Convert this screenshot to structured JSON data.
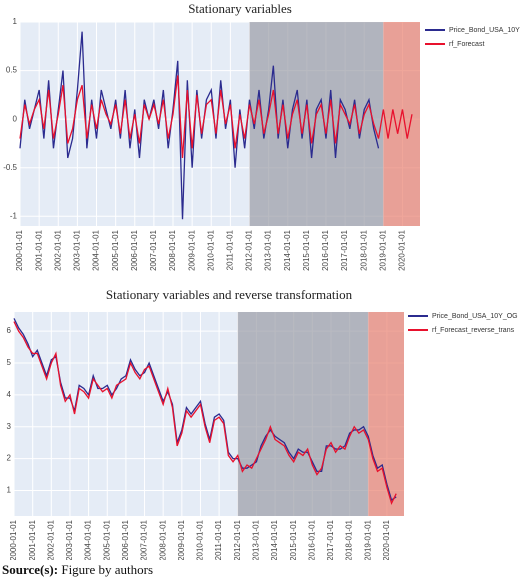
{
  "chart_data": [
    {
      "type": "line",
      "title": "Stationary variables",
      "x": [
        "2000-01-01",
        "2000-04-01",
        "2000-07-01",
        "2000-10-01",
        "2001-01-01",
        "2001-04-01",
        "2001-07-01",
        "2001-10-01",
        "2002-01-01",
        "2002-04-01",
        "2002-07-01",
        "2002-10-01",
        "2003-01-01",
        "2003-04-01",
        "2003-07-01",
        "2003-10-01",
        "2004-01-01",
        "2004-04-01",
        "2004-07-01",
        "2004-10-01",
        "2005-01-01",
        "2005-04-01",
        "2005-07-01",
        "2005-10-01",
        "2006-01-01",
        "2006-04-01",
        "2006-07-01",
        "2006-10-01",
        "2007-01-01",
        "2007-04-01",
        "2007-07-01",
        "2007-10-01",
        "2008-01-01",
        "2008-04-01",
        "2008-07-01",
        "2008-10-01",
        "2009-01-01",
        "2009-04-01",
        "2009-07-01",
        "2009-10-01",
        "2010-01-01",
        "2010-04-01",
        "2010-07-01",
        "2010-10-01",
        "2011-01-01",
        "2011-04-01",
        "2011-07-01",
        "2011-10-01",
        "2012-01-01",
        "2012-04-01",
        "2012-07-01",
        "2012-10-01",
        "2013-01-01",
        "2013-04-01",
        "2013-07-01",
        "2013-10-01",
        "2014-01-01",
        "2014-04-01",
        "2014-07-01",
        "2014-10-01",
        "2015-01-01",
        "2015-04-01",
        "2015-07-01",
        "2015-10-01",
        "2016-01-01",
        "2016-04-01",
        "2016-07-01",
        "2016-10-01",
        "2017-01-01",
        "2017-04-01",
        "2017-07-01",
        "2017-10-01",
        "2018-01-01",
        "2018-04-01",
        "2018-07-01",
        "2018-10-01",
        "2019-01-01",
        "2019-04-01",
        "2019-07-01",
        "2019-10-01",
        "2020-01-01",
        "2020-04-01",
        "2020-07-01"
      ],
      "series": [
        {
          "name": "Price_Bond_USA_10Y",
          "color": "#2b2b8f",
          "values": [
            -0.3,
            0.2,
            -0.1,
            0.1,
            0.3,
            -0.2,
            0.4,
            -0.3,
            0.1,
            0.5,
            -0.4,
            -0.2,
            0.3,
            0.9,
            -0.3,
            0.2,
            -0.2,
            0.3,
            0.1,
            -0.1,
            0.2,
            -0.2,
            0.3,
            -0.3,
            0.1,
            -0.4,
            0.2,
            0.0,
            0.2,
            -0.1,
            0.3,
            -0.3,
            0.1,
            0.6,
            -1.03,
            0.4,
            -0.5,
            0.3,
            -0.2,
            0.2,
            0.3,
            -0.2,
            0.4,
            -0.1,
            0.2,
            -0.5,
            0.1,
            -0.3,
            0.2,
            -0.1,
            0.3,
            -0.2,
            0.1,
            0.55,
            -0.2,
            0.2,
            -0.3,
            0.1,
            0.3,
            -0.2,
            0.2,
            -0.4,
            0.1,
            0.2,
            -0.2,
            0.3,
            -0.4,
            0.2,
            0.1,
            -0.1,
            0.2,
            -0.2,
            0.1,
            0.2,
            -0.1,
            -0.3,
            null,
            null,
            null,
            null,
            null,
            null,
            null
          ]
        },
        {
          "name": "rf_Forecast",
          "color": "#e8112d",
          "values": [
            -0.2,
            0.15,
            -0.05,
            0.1,
            0.2,
            -0.1,
            0.3,
            -0.2,
            0.05,
            0.35,
            -0.25,
            -0.1,
            0.2,
            0.35,
            -0.2,
            0.15,
            -0.1,
            0.2,
            0.05,
            -0.05,
            0.15,
            -0.15,
            0.2,
            -0.2,
            0.05,
            -0.25,
            0.15,
            0.0,
            0.15,
            -0.05,
            0.2,
            -0.2,
            0.05,
            0.45,
            -0.4,
            0.3,
            -0.3,
            0.25,
            -0.15,
            0.15,
            0.2,
            -0.15,
            0.3,
            -0.05,
            0.15,
            -0.3,
            0.05,
            -0.2,
            0.15,
            -0.05,
            0.2,
            -0.15,
            0.05,
            0.3,
            -0.15,
            0.15,
            -0.2,
            0.05,
            0.2,
            -0.15,
            0.15,
            -0.25,
            0.05,
            0.15,
            -0.15,
            0.2,
            -0.25,
            0.15,
            0.05,
            -0.05,
            0.15,
            -0.15,
            0.05,
            0.15,
            -0.05,
            -0.2,
            0.1,
            -0.2,
            0.1,
            -0.15,
            0.1,
            -0.2,
            0.05
          ]
        }
      ],
      "xlim": [
        "2000-01-01",
        "2020-12-01"
      ],
      "xticks": [
        "2000-01-01",
        "2001-01-01",
        "2002-01-01",
        "2003-01-01",
        "2004-01-01",
        "2005-01-01",
        "2006-01-01",
        "2007-01-01",
        "2008-01-01",
        "2009-01-01",
        "2010-01-01",
        "2011-01-01",
        "2012-01-01",
        "2013-01-01",
        "2014-01-01",
        "2015-01-01",
        "2016-01-01",
        "2017-01-01",
        "2018-01-01",
        "2019-01-01",
        "2020-01-01"
      ],
      "ylim": [
        -1.1,
        1.0
      ],
      "yticks": [
        -1,
        -0.5,
        0,
        0.5,
        1
      ],
      "grid": true,
      "regions": [
        {
          "start": "2012-01-01",
          "end": "2019-01-01",
          "color": "#9b9da6"
        },
        {
          "start": "2019-01-01",
          "end": "2020-12-01",
          "color": "#e9806f"
        }
      ]
    },
    {
      "type": "line",
      "title": "Stationary variables and reverse transformation",
      "x": [
        "2000-01-01",
        "2000-04-01",
        "2000-07-01",
        "2000-10-01",
        "2001-01-01",
        "2001-04-01",
        "2001-07-01",
        "2001-10-01",
        "2002-01-01",
        "2002-04-01",
        "2002-07-01",
        "2002-10-01",
        "2003-01-01",
        "2003-04-01",
        "2003-07-01",
        "2003-10-01",
        "2004-01-01",
        "2004-04-01",
        "2004-07-01",
        "2004-10-01",
        "2005-01-01",
        "2005-04-01",
        "2005-07-01",
        "2005-10-01",
        "2006-01-01",
        "2006-04-01",
        "2006-07-01",
        "2006-10-01",
        "2007-01-01",
        "2007-04-01",
        "2007-07-01",
        "2007-10-01",
        "2008-01-01",
        "2008-04-01",
        "2008-07-01",
        "2008-10-01",
        "2009-01-01",
        "2009-04-01",
        "2009-07-01",
        "2009-10-01",
        "2010-01-01",
        "2010-04-01",
        "2010-07-01",
        "2010-10-01",
        "2011-01-01",
        "2011-04-01",
        "2011-07-01",
        "2011-10-01",
        "2012-01-01",
        "2012-04-01",
        "2012-07-01",
        "2012-10-01",
        "2013-01-01",
        "2013-04-01",
        "2013-07-01",
        "2013-10-01",
        "2014-01-01",
        "2014-04-01",
        "2014-07-01",
        "2014-10-01",
        "2015-01-01",
        "2015-04-01",
        "2015-07-01",
        "2015-10-01",
        "2016-01-01",
        "2016-04-01",
        "2016-07-01",
        "2016-10-01",
        "2017-01-01",
        "2017-04-01",
        "2017-07-01",
        "2017-10-01",
        "2018-01-01",
        "2018-04-01",
        "2018-07-01",
        "2018-10-01",
        "2019-01-01",
        "2019-04-01",
        "2019-07-01",
        "2019-10-01",
        "2020-01-01",
        "2020-04-01",
        "2020-07-01"
      ],
      "series": [
        {
          "name": "Price_Bond_USA_10Y_OG",
          "color": "#2b2b8f",
          "values": [
            6.4,
            6.1,
            5.9,
            5.6,
            5.2,
            5.4,
            5.0,
            4.6,
            5.1,
            5.2,
            4.4,
            3.9,
            3.9,
            3.5,
            4.3,
            4.2,
            4.0,
            4.6,
            4.2,
            4.2,
            4.3,
            4.0,
            4.2,
            4.5,
            4.6,
            5.1,
            4.8,
            4.6,
            4.7,
            5.0,
            4.6,
            4.2,
            3.8,
            4.1,
            3.7,
            2.5,
            2.9,
            3.6,
            3.4,
            3.6,
            3.8,
            3.1,
            2.6,
            3.3,
            3.4,
            3.2,
            2.2,
            2.0,
            2.0,
            1.7,
            1.7,
            1.8,
            1.9,
            2.4,
            2.7,
            2.9,
            2.7,
            2.6,
            2.5,
            2.2,
            2.0,
            2.3,
            2.2,
            2.2,
            1.9,
            1.6,
            1.6,
            2.4,
            2.4,
            2.3,
            2.3,
            2.4,
            2.8,
            2.9,
            2.9,
            3.0,
            2.7,
            2.1,
            1.7,
            1.8,
            1.2,
            0.7,
            0.8
          ]
        },
        {
          "name": "rf_Forecast_reverse_trans",
          "color": "#e8112d",
          "values": [
            6.3,
            6.0,
            5.8,
            5.5,
            5.3,
            5.3,
            4.9,
            4.5,
            5.0,
            5.3,
            4.3,
            3.8,
            4.0,
            3.4,
            4.2,
            4.1,
            3.9,
            4.5,
            4.3,
            4.1,
            4.2,
            3.9,
            4.3,
            4.4,
            4.5,
            5.0,
            4.7,
            4.5,
            4.8,
            4.9,
            4.5,
            4.1,
            3.7,
            4.2,
            3.6,
            2.4,
            2.8,
            3.5,
            3.3,
            3.5,
            3.7,
            3.0,
            2.5,
            3.2,
            3.3,
            3.1,
            2.1,
            1.9,
            2.1,
            1.6,
            1.8,
            1.7,
            2.0,
            2.3,
            2.6,
            3.0,
            2.6,
            2.5,
            2.4,
            2.1,
            1.9,
            2.2,
            2.1,
            2.3,
            1.8,
            1.5,
            1.7,
            2.3,
            2.5,
            2.2,
            2.4,
            2.3,
            2.7,
            3.0,
            2.8,
            2.9,
            2.6,
            2.0,
            1.6,
            1.7,
            1.1,
            0.6,
            0.9
          ]
        }
      ],
      "xlim": [
        "2000-01-01",
        "2020-12-01"
      ],
      "xticks": [
        "2000-01-01",
        "2001-01-01",
        "2002-01-01",
        "2003-01-01",
        "2004-01-01",
        "2005-01-01",
        "2006-01-01",
        "2007-01-01",
        "2008-01-01",
        "2009-01-01",
        "2010-01-01",
        "2011-01-01",
        "2012-01-01",
        "2013-01-01",
        "2014-01-01",
        "2015-01-01",
        "2016-01-01",
        "2017-01-01",
        "2018-01-01",
        "2019-01-01",
        "2020-01-01"
      ],
      "ylim": [
        0.2,
        6.6
      ],
      "yticks": [
        1,
        2,
        3,
        4,
        5,
        6
      ],
      "grid": true,
      "regions": [
        {
          "start": "2012-01-01",
          "end": "2019-01-01",
          "color": "#9b9da6"
        },
        {
          "start": "2019-01-01",
          "end": "2020-12-01",
          "color": "#e9806f"
        }
      ]
    }
  ],
  "source": {
    "label": "Source(s):",
    "text": "Figure by authors"
  }
}
